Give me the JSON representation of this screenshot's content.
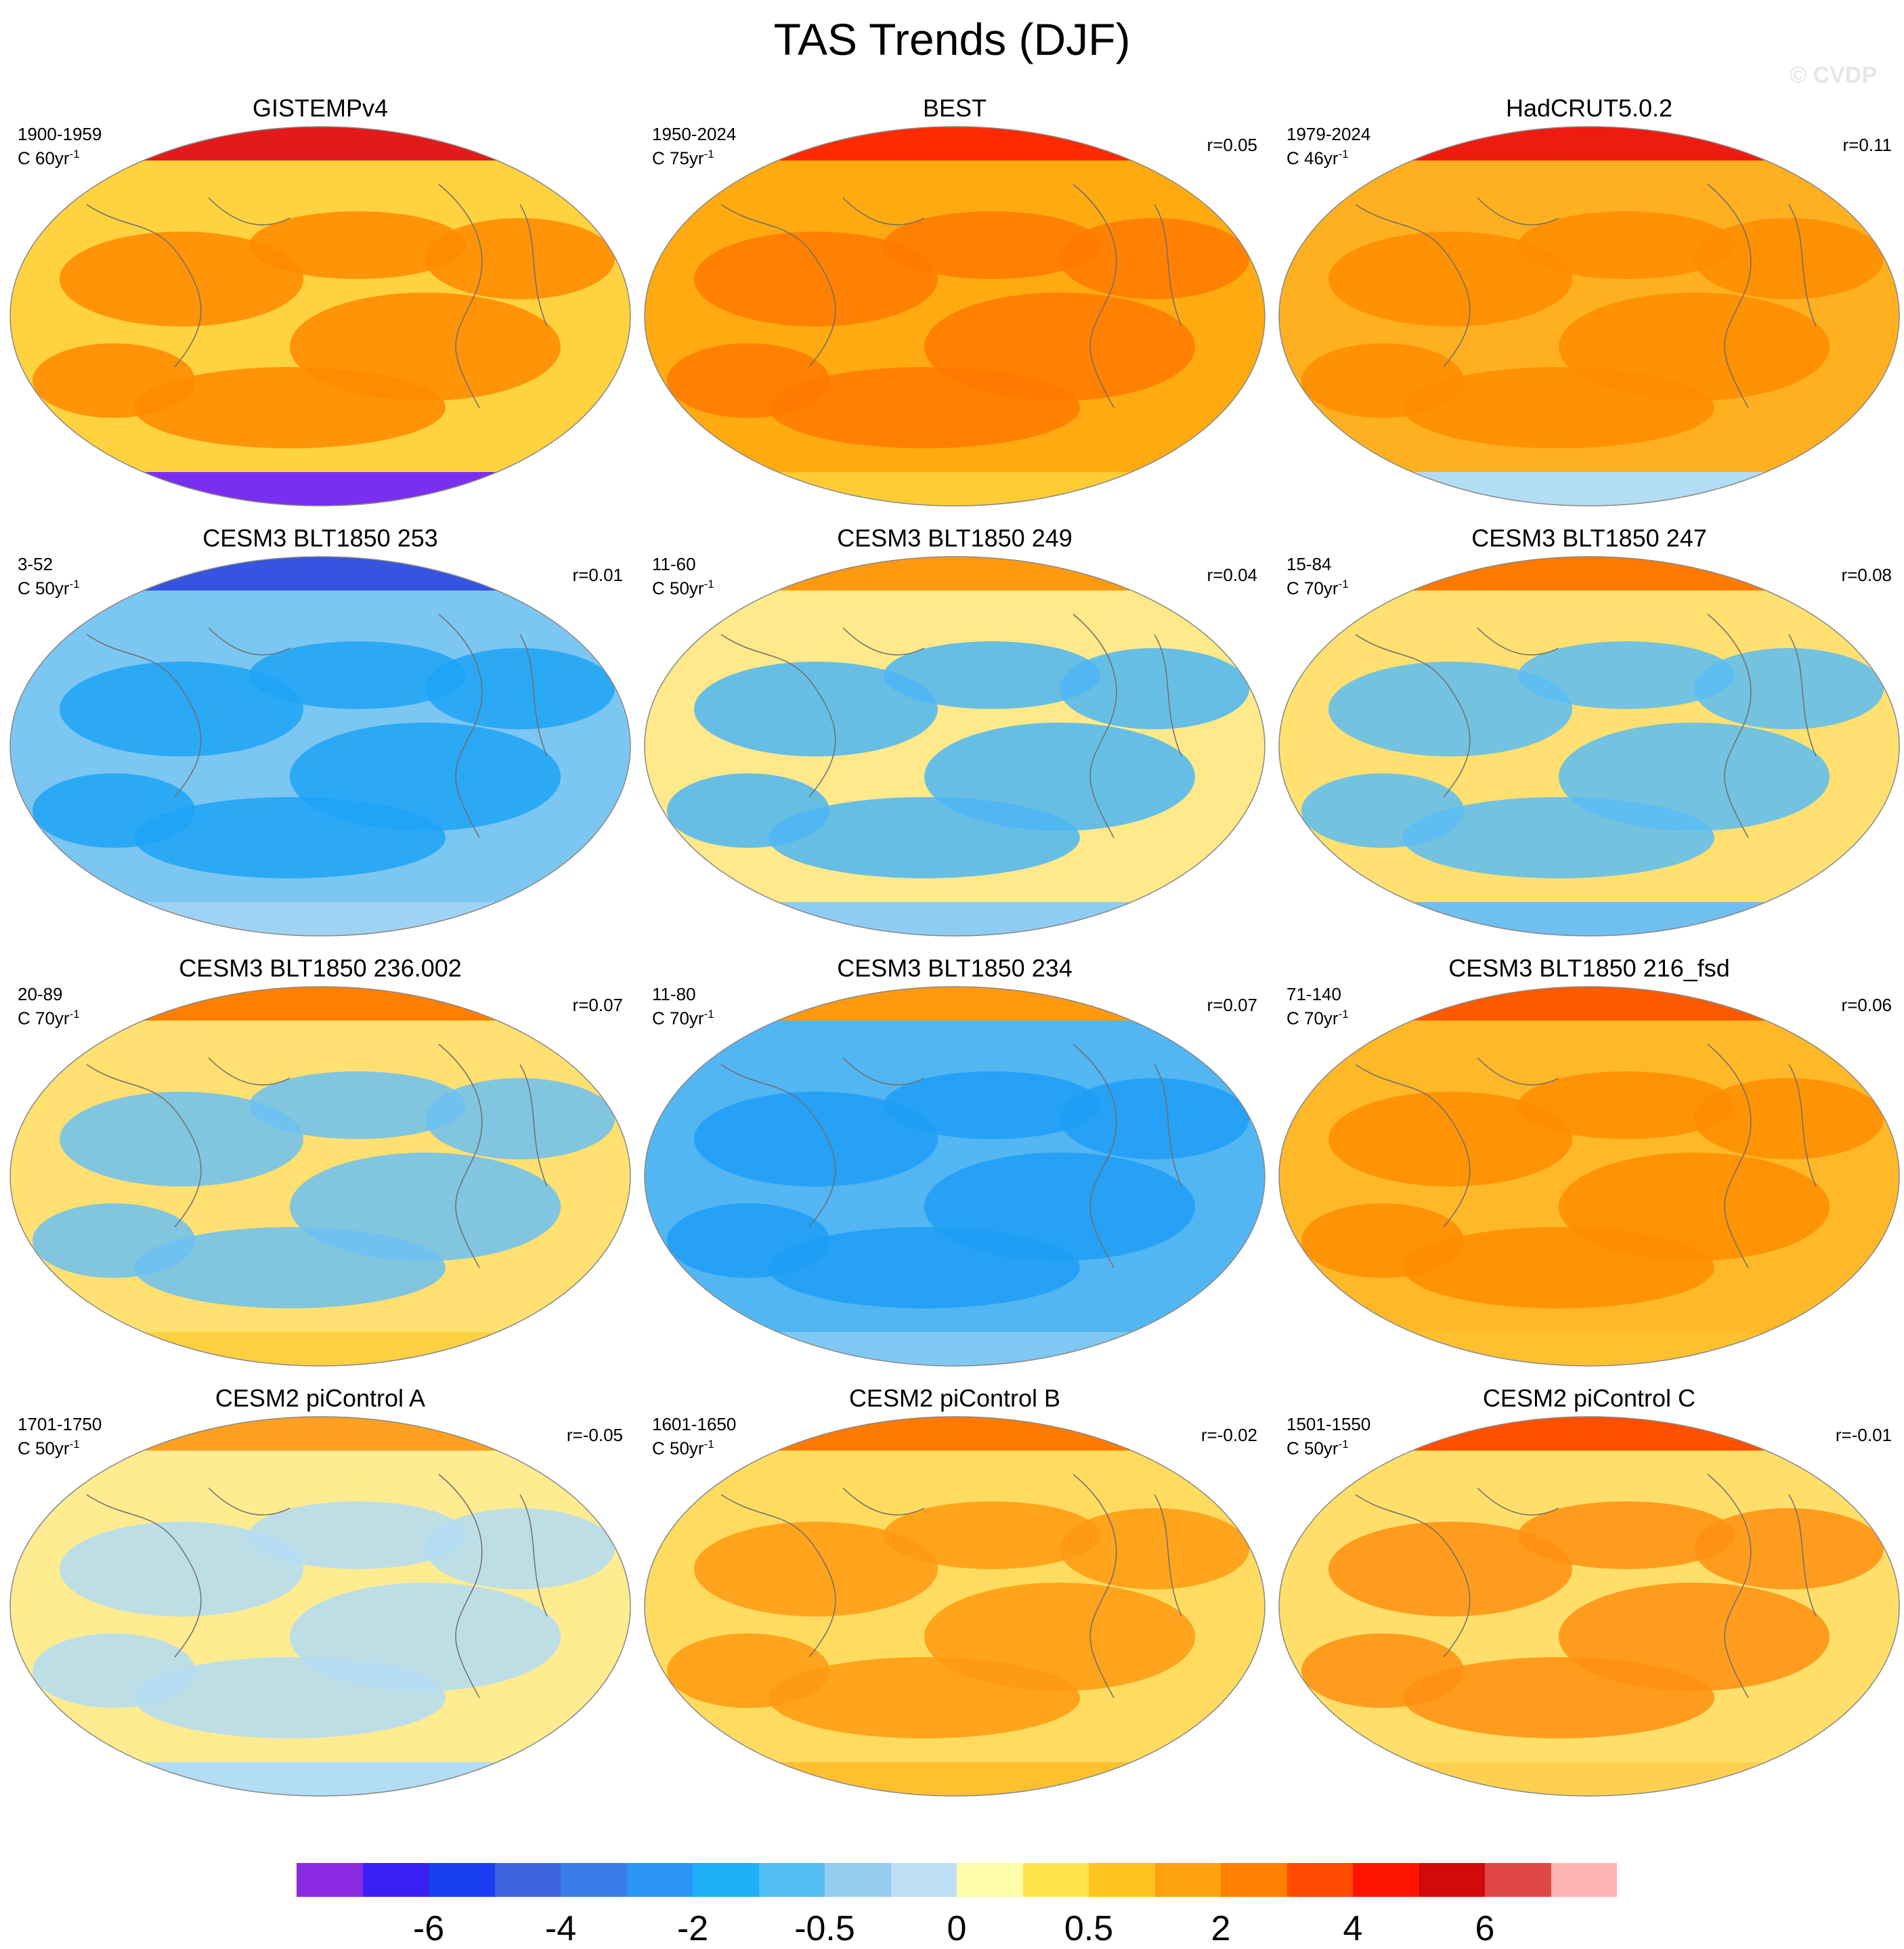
{
  "title": "TAS Trends (DJF)",
  "watermark": "© CVDP",
  "panels": [
    {
      "title": "GISTEMPv4",
      "period": "1900-1959",
      "scale": "C 60yr",
      "scale_exp": "-1",
      "corr": "",
      "base": "#ffd23f",
      "accent": "#ff8a00",
      "polar_n": "#e31a1c",
      "polar_s": "#7a2ff0"
    },
    {
      "title": "BEST",
      "period": "1950-2024",
      "scale": "C 75yr",
      "scale_exp": "-1",
      "corr": "r=0.05",
      "base": "#ffaa10",
      "accent": "#ff7a00",
      "polar_n": "#ff2a00",
      "polar_s": "#ffcc33"
    },
    {
      "title": "HadCRUT5.0.2",
      "period": "1979-2024",
      "scale": "C 46yr",
      "scale_exp": "-1",
      "corr": "r=0.11",
      "base": "#ffb020",
      "accent": "#ff8c00",
      "polar_n": "#ee1c10",
      "polar_s": "#b3dcf5"
    },
    {
      "title": "CESM3 BLT1850 253",
      "period": "3-52",
      "scale": "C 50yr",
      "scale_exp": "-1",
      "corr": "r=0.01",
      "base": "#7cc6f2",
      "accent": "#1ea3f5",
      "polar_n": "#3654e0",
      "polar_s": "#9fd3f5"
    },
    {
      "title": "CESM3 BLT1850 249",
      "period": "11-60",
      "scale": "C 50yr",
      "scale_exp": "-1",
      "corr": "r=0.04",
      "base": "#ffe98a",
      "accent": "#4cb6f4",
      "polar_n": "#ff9a10",
      "polar_s": "#8ecdf3"
    },
    {
      "title": "CESM3 BLT1850 247",
      "period": "15-84",
      "scale": "C 70yr",
      "scale_exp": "-1",
      "corr": "r=0.08",
      "base": "#ffe070",
      "accent": "#5bbcf3",
      "polar_n": "#ff7a00",
      "polar_s": "#6fbff0"
    },
    {
      "title": "CESM3 BLT1850 236.002",
      "period": "20-89",
      "scale": "C 70yr",
      "scale_exp": "-1",
      "corr": "r=0.07",
      "base": "#ffe070",
      "accent": "#6cc0f2",
      "polar_n": "#ff8000",
      "polar_s": "#ffd040"
    },
    {
      "title": "CESM3 BLT1850 234",
      "period": "11-80",
      "scale": "C 70yr",
      "scale_exp": "-1",
      "corr": "r=0.07",
      "base": "#52b6f3",
      "accent": "#1e9ef5",
      "polar_n": "#ff9a10",
      "polar_s": "#7fc8f3"
    },
    {
      "title": "CESM3 BLT1850 216_fsd",
      "period": "71-140",
      "scale": "C 70yr",
      "scale_exp": "-1",
      "corr": "r=0.06",
      "base": "#ffb828",
      "accent": "#ff8c00",
      "polar_n": "#ff5a00",
      "polar_s": "#ffc030"
    },
    {
      "title": "CESM2 piControl A",
      "period": "1701-1750",
      "scale": "C 50yr",
      "scale_exp": "-1",
      "corr": "r=-0.05",
      "base": "#ffec90",
      "accent": "#b3dcf5",
      "polar_n": "#ffa020",
      "polar_s": "#b3dcf5"
    },
    {
      "title": "CESM2 piControl B",
      "period": "1601-1650",
      "scale": "C 50yr",
      "scale_exp": "-1",
      "corr": "r=-0.02",
      "base": "#ffdc60",
      "accent": "#ff9a10",
      "polar_n": "#ff7a00",
      "polar_s": "#ffc030"
    },
    {
      "title": "CESM2 piControl C",
      "period": "1501-1550",
      "scale": "C 50yr",
      "scale_exp": "-1",
      "corr": "r=-0.01",
      "base": "#ffdf6a",
      "accent": "#ff9010",
      "polar_n": "#ff5000",
      "polar_s": "#ffd050"
    }
  ],
  "colorbar": {
    "colors": [
      "#8a2be2",
      "#3a1ff5",
      "#1a3ff0",
      "#3f63e0",
      "#3a7ce8",
      "#2b95f5",
      "#1eb0f8",
      "#52bdf3",
      "#94cdef",
      "#bde0f6",
      "#ffffaa",
      "#ffe34a",
      "#ffc21e",
      "#ffa20f",
      "#ff7f00",
      "#ff4a00",
      "#ff1400",
      "#d10a0a",
      "#e04848",
      "#ffb3b3"
    ],
    "labels": [
      "-6",
      "-4",
      "-2",
      "-0.5",
      "0",
      "0.5",
      "2",
      "4",
      "6"
    ]
  }
}
